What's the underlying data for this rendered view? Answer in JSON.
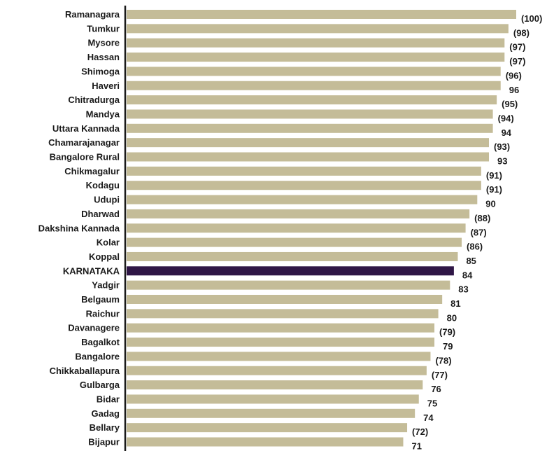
{
  "chart_data": {
    "type": "bar",
    "orientation": "horizontal",
    "categories": [
      "Ramanagara",
      "Tumkur",
      "Mysore",
      "Hassan",
      "Shimoga",
      "Haveri",
      "Chitradurga",
      "Mandya",
      "Uttara Kannada",
      "Chamarajanagar",
      "Bangalore Rural",
      "Chikmagalur",
      "Kodagu",
      "Udupi",
      "Dharwad",
      "Dakshina Kannada",
      "Kolar",
      "Koppal",
      "KARNATAKA",
      "Yadgir",
      "Belgaum",
      "Raichur",
      "Davanagere",
      "Bagalkot",
      "Bangalore",
      "Chikkaballapura",
      "Gulbarga",
      "Bidar",
      "Gadag",
      "Bellary",
      "Bijapur"
    ],
    "values": [
      100,
      98,
      97,
      97,
      96,
      96,
      95,
      94,
      94,
      93,
      93,
      91,
      91,
      90,
      88,
      87,
      86,
      85,
      84,
      83,
      81,
      80,
      79,
      79,
      78,
      77,
      76,
      75,
      74,
      72,
      71
    ],
    "value_labels": [
      "(100)",
      "(98)",
      "(97)",
      "(97)",
      "(96)",
      "96",
      "(95)",
      "(94)",
      "94",
      "(93)",
      "93",
      "(91)",
      "(91)",
      "90",
      "(88)",
      "(87)",
      "(86)",
      "85",
      "84",
      "83",
      "81",
      "80",
      "(79)",
      "79",
      "(78)",
      "(77)",
      "76",
      "75",
      "74",
      "(72)",
      "71"
    ],
    "highlight_category": "KARNATAKA",
    "colors": {
      "bar": "#c4bc98",
      "highlight": "#2f1646",
      "axis": "#1a1a1a",
      "text": "#1a1a1a"
    },
    "title": "",
    "xlabel": "",
    "ylabel": "",
    "xlim": [
      0,
      100
    ],
    "grid": false,
    "legend": "none"
  }
}
